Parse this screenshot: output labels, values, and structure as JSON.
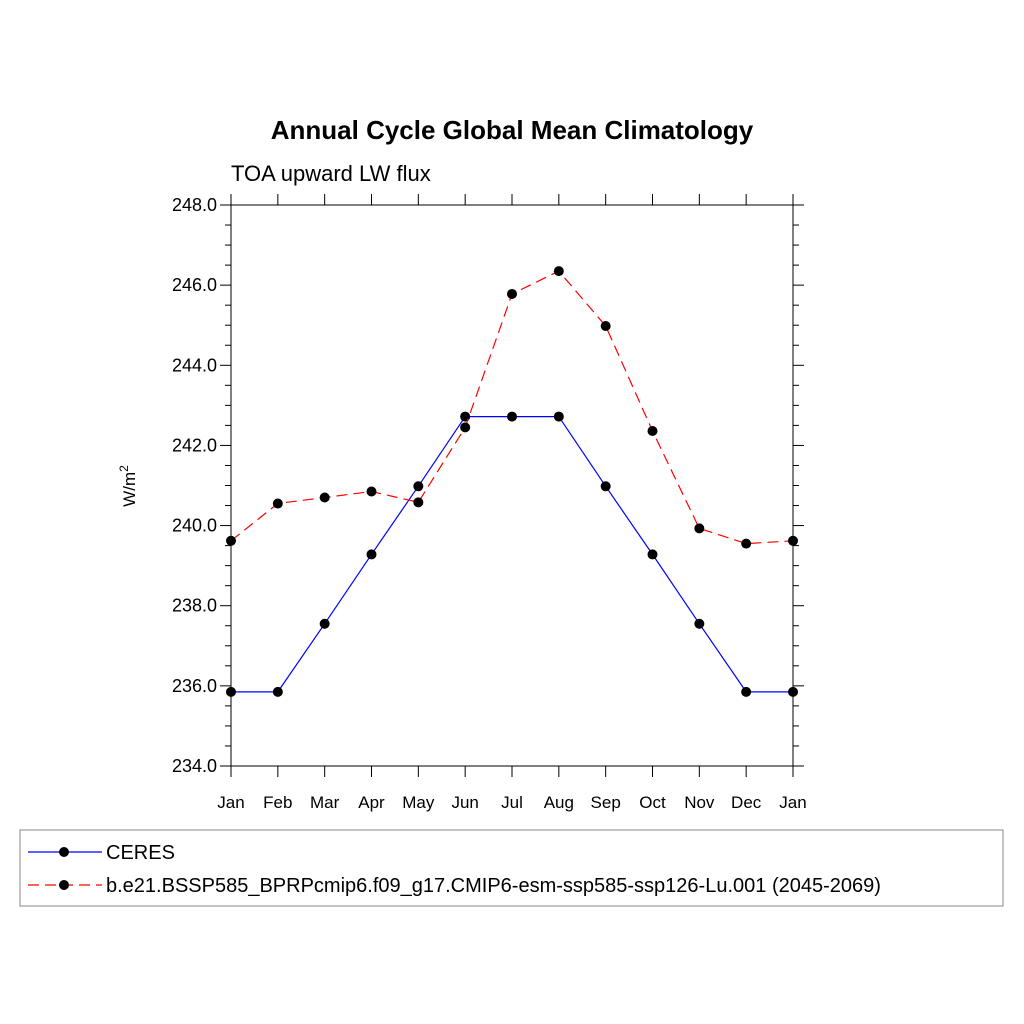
{
  "chart_data": {
    "type": "line",
    "title": "Annual Cycle Global Mean Climatology",
    "subtitle": "TOA upward LW flux",
    "ylabel_base": "W/m",
    "ylabel_sup": "2",
    "xlabel": "",
    "categories": [
      "Jan",
      "Feb",
      "Mar",
      "Apr",
      "May",
      "Jun",
      "Jul",
      "Aug",
      "Sep",
      "Oct",
      "Nov",
      "Dec",
      "Jan"
    ],
    "ylim": [
      234.0,
      248.0
    ],
    "yticks": [
      "234.0",
      "236.0",
      "238.0",
      "240.0",
      "242.0",
      "244.0",
      "246.0",
      "248.0"
    ],
    "grid": false,
    "legend_position": "bottom",
    "series": [
      {
        "name": "CERES",
        "color": "#0000ff",
        "dash": "solid",
        "values": [
          235.85,
          235.85,
          237.55,
          239.28,
          240.98,
          242.72,
          242.72,
          242.72,
          240.98,
          239.28,
          237.55,
          235.85,
          235.85
        ]
      },
      {
        "name": "b.e21.BSSP585_BPRPcmip6.f09_g17.CMIP6-esm-ssp585-ssp126-Lu.001 (2045-2069)",
        "color": "#ff0000",
        "dash": "dashed",
        "values": [
          239.62,
          240.55,
          240.7,
          240.85,
          240.58,
          242.45,
          245.78,
          246.35,
          244.98,
          242.36,
          239.93,
          239.55,
          239.62
        ]
      }
    ]
  }
}
